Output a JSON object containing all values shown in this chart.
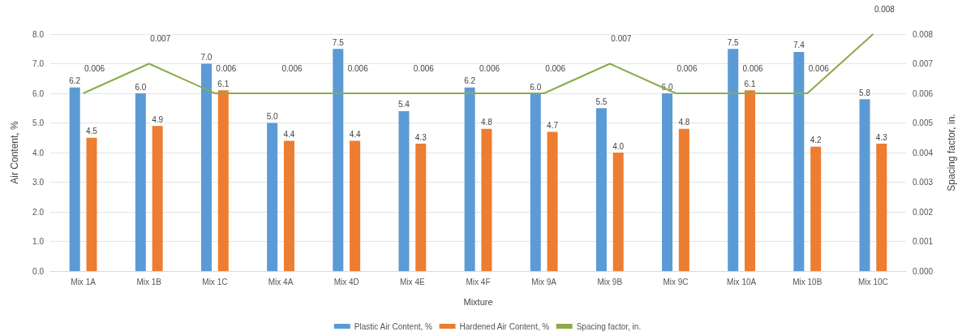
{
  "chart_data": {
    "type": "bar",
    "xlabel": "Mixture",
    "ylabel": "Air Content, %",
    "y2label": "Spacing factor, in.",
    "categories": [
      "Mix 1A",
      "Mix 1B",
      "Mix 1C",
      "Mix 4A",
      "Mix 4D",
      "Mix 4E",
      "Mix 4F",
      "Mix 9A",
      "Mix 9B",
      "Mix 9C",
      "Mix 10A",
      "Mix 10B",
      "Mix 10C"
    ],
    "series": [
      {
        "name": "Plastic Air Content, %",
        "color": "#5b9bd5",
        "values": [
          6.2,
          6.0,
          7.0,
          5.0,
          7.5,
          5.4,
          6.2,
          6.0,
          5.5,
          6.0,
          7.5,
          7.4,
          5.8
        ],
        "value_labels": [
          "6.2",
          "6.0",
          "7.0",
          "5.0",
          "7.5",
          "5.4",
          "6.2",
          "6.0",
          "5.5",
          "6.0",
          "7.5",
          "7.4",
          "5.8"
        ]
      },
      {
        "name": "Hardened Air Content, %",
        "color": "#ed7d31",
        "values": [
          4.5,
          4.9,
          6.1,
          4.4,
          4.4,
          4.3,
          4.8,
          4.7,
          4.0,
          4.8,
          6.1,
          4.2,
          4.3
        ],
        "value_labels": [
          "4.5",
          "4.9",
          "6.1",
          "4.4",
          "4.4",
          "4.3",
          "4.8",
          "4.7",
          "4.0",
          "4.8",
          "6.1",
          "4.2",
          "4.3"
        ]
      },
      {
        "name": "Spacing factor, in.",
        "type": "line",
        "axis": "y2",
        "color": "#8aac4a",
        "values": [
          0.006,
          0.007,
          0.006,
          0.006,
          0.006,
          0.006,
          0.006,
          0.006,
          0.007,
          0.006,
          0.006,
          0.006,
          0.008
        ],
        "value_labels": [
          "0.006",
          "0.007",
          "0.006",
          "0.006",
          "0.006",
          "0.006",
          "0.006",
          "0.006",
          "0.007",
          "0.006",
          "0.006",
          "0.006",
          "0.008"
        ]
      }
    ],
    "ylim": [
      0,
      8
    ],
    "yticks": [
      {
        "value": 0,
        "label": "0.0"
      },
      {
        "value": 1,
        "label": "1.0"
      },
      {
        "value": 2,
        "label": "2.0"
      },
      {
        "value": 3,
        "label": "3.0"
      },
      {
        "value": 4,
        "label": "4.0"
      },
      {
        "value": 5,
        "label": "5.0"
      },
      {
        "value": 6,
        "label": "6.0"
      },
      {
        "value": 7,
        "label": "7.0"
      },
      {
        "value": 8,
        "label": "8.0"
      }
    ],
    "y2lim": [
      0,
      0.008
    ],
    "y2ticks": [
      {
        "value": 0,
        "label": "0.000"
      },
      {
        "value": 0.001,
        "label": "0.001"
      },
      {
        "value": 0.002,
        "label": "0.002"
      },
      {
        "value": 0.003,
        "label": "0.003"
      },
      {
        "value": 0.004,
        "label": "0.004"
      },
      {
        "value": 0.005,
        "label": "0.005"
      },
      {
        "value": 0.006,
        "label": "0.006"
      },
      {
        "value": 0.007,
        "label": "0.007"
      },
      {
        "value": 0.008,
        "label": "0.008"
      }
    ],
    "grid": "y",
    "legend": "bottom",
    "marker": "none",
    "line_style": "solid"
  }
}
